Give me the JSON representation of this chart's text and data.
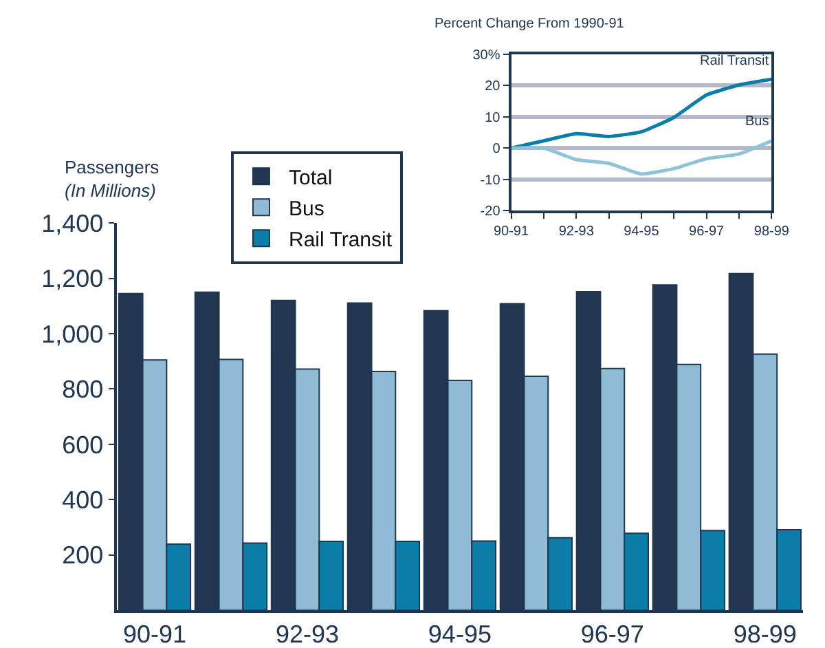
{
  "chart_data": [
    {
      "type": "bar",
      "ylabel": "Passengers\n(In Millions)",
      "categories": [
        "90-91",
        null,
        "92-93",
        null,
        "94-95",
        null,
        "96-97",
        null,
        "98-99"
      ],
      "series": [
        {
          "name": "Total",
          "color": "#21364f",
          "values": [
            1145,
            1150,
            1120,
            1111,
            1083,
            1108,
            1152,
            1176,
            1217
          ]
        },
        {
          "name": "Bus",
          "color": "#8fbcd4",
          "values": [
            905,
            907,
            872,
            863,
            831,
            846,
            874,
            889,
            926
          ]
        },
        {
          "name": "Rail Transit",
          "color": "#0a7ea8",
          "values": [
            239,
            243,
            249,
            249,
            250,
            262,
            278,
            288,
            291
          ]
        }
      ],
      "ylim": [
        0,
        1400
      ],
      "yticks": [
        {
          "value": 200,
          "label": "200"
        },
        {
          "value": 400,
          "label": "400"
        },
        {
          "value": 600,
          "label": "600"
        },
        {
          "value": 800,
          "label": "800"
        },
        {
          "value": 1000,
          "label": "1,000"
        },
        {
          "value": 1200,
          "label": "1,200"
        },
        {
          "value": 1400,
          "label": "1,400"
        }
      ],
      "legend": "top left",
      "grid": false
    },
    {
      "type": "line",
      "title": "Percent Change From 1990-91",
      "categories": [
        "90-91",
        null,
        "92-93",
        null,
        "94-95",
        null,
        "96-97",
        null,
        "98-99"
      ],
      "series": [
        {
          "name": "Rail Transit",
          "color": "#0a7ea8",
          "values": [
            0,
            2.3,
            4.6,
            3.7,
            5.2,
            9.8,
            17,
            20.2,
            22
          ]
        },
        {
          "name": "Bus",
          "color": "#8fc3da",
          "values": [
            0,
            0,
            -3.7,
            -4.9,
            -8.3,
            -6.6,
            -3.4,
            -1.9,
            2.3
          ]
        }
      ],
      "ylim": [
        -20,
        30
      ],
      "yticks": [
        -20,
        -10,
        0,
        10,
        20,
        {
          "value": 30,
          "label": "30%"
        }
      ],
      "grid": "y",
      "marker": "none",
      "line_style": "solid",
      "legend": false
    }
  ]
}
